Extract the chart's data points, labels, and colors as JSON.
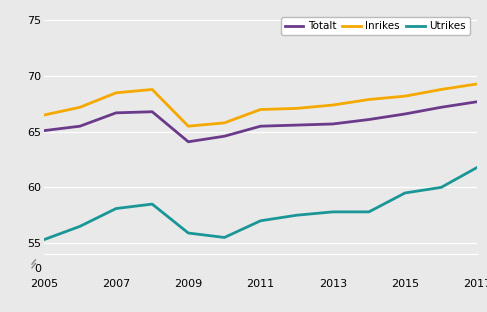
{
  "years": [
    2005,
    2006,
    2007,
    2008,
    2009,
    2010,
    2011,
    2012,
    2013,
    2014,
    2015,
    2016,
    2017
  ],
  "totalt": [
    65.1,
    65.5,
    66.7,
    66.8,
    64.1,
    64.6,
    65.5,
    65.6,
    65.7,
    66.1,
    66.6,
    67.2,
    67.7
  ],
  "inrikes": [
    66.5,
    67.2,
    68.5,
    68.8,
    65.5,
    65.8,
    67.0,
    67.1,
    67.4,
    67.9,
    68.2,
    68.8,
    69.3
  ],
  "utrikes": [
    55.3,
    56.5,
    58.1,
    58.5,
    55.9,
    55.5,
    57.0,
    57.5,
    57.8,
    57.8,
    59.5,
    60.0,
    61.8
  ],
  "color_totalt": "#6b3a8a",
  "color_inrikes": "#f5a800",
  "color_utrikes": "#1a9696",
  "line_width": 2.0,
  "bg_color": "#e9e9e9",
  "grid_color": "#ffffff",
  "yticks_main": [
    55,
    60,
    65,
    70,
    75
  ],
  "ytick_zero": [
    0
  ],
  "ylim_main": [
    54.0,
    76.0
  ],
  "ylim_zero": [
    -1,
    2
  ],
  "xlim": [
    2005,
    2017
  ],
  "xticks": [
    2005,
    2007,
    2009,
    2011,
    2013,
    2015,
    2017
  ],
  "legend_labels": [
    "Totalt",
    "Inrikes",
    "Utrikes"
  ]
}
